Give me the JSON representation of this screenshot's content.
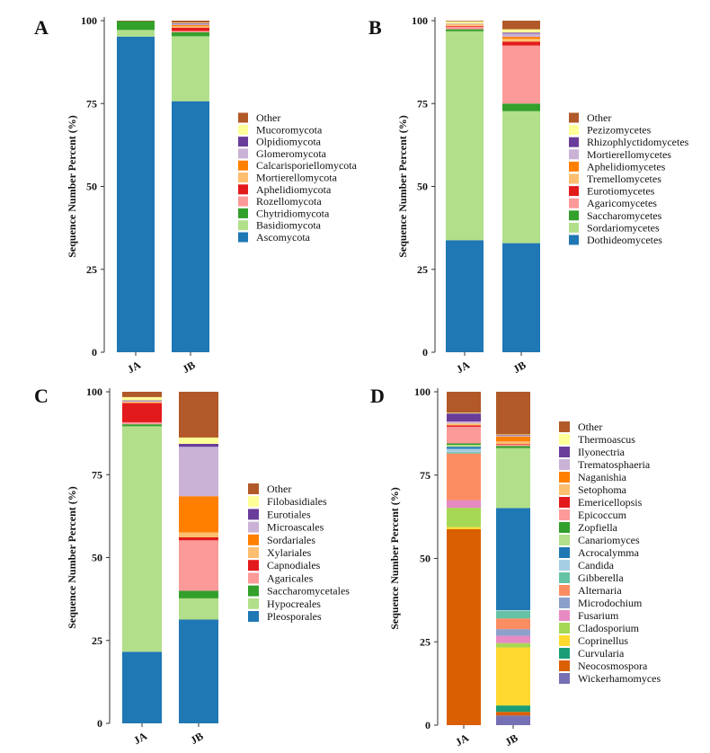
{
  "chart_data": [
    {
      "type": "stacked-bar",
      "panel": "A",
      "ylabel": "Sequence Number Percent (%)",
      "ylim": [
        0,
        100
      ],
      "yticks": [
        0,
        25,
        50,
        75,
        100
      ],
      "categories": [
        "JA",
        "JB"
      ],
      "legend_position": "right",
      "series": [
        {
          "name": "Ascomycota",
          "color": "#1f77b4",
          "values": [
            95.2,
            75.7
          ]
        },
        {
          "name": "Basidiomycota",
          "color": "#b2df8a",
          "values": [
            2.0,
            19.6
          ]
        },
        {
          "name": "Chytridiomycota",
          "color": "#33a02c",
          "values": [
            2.7,
            1.2
          ]
        },
        {
          "name": "Rozellomycota",
          "color": "#fb9a99",
          "values": [
            0,
            0.4
          ]
        },
        {
          "name": "Aphelidiomycota",
          "color": "#e31a1c",
          "values": [
            0,
            1.0
          ]
        },
        {
          "name": "Mortierellomycota",
          "color": "#fdbf6f",
          "values": [
            0,
            0.4
          ]
        },
        {
          "name": "Calcarisporiellomycota",
          "color": "#ff7f00",
          "values": [
            0,
            0.4
          ]
        },
        {
          "name": "Glomeromycota",
          "color": "#cab2d6",
          "values": [
            0,
            0.3
          ]
        },
        {
          "name": "Olpidiomycota",
          "color": "#6a3d9a",
          "values": [
            0,
            0.2
          ]
        },
        {
          "name": "Mucoromycota",
          "color": "#ffff99",
          "values": [
            0,
            0.2
          ]
        },
        {
          "name": "Other",
          "color": "#b15928",
          "values": [
            0.1,
            0.6
          ]
        }
      ]
    },
    {
      "type": "stacked-bar",
      "panel": "B",
      "ylabel": "Sequence Number Percent (%)",
      "ylim": [
        0,
        100
      ],
      "yticks": [
        0,
        25,
        50,
        75,
        100
      ],
      "categories": [
        "JA",
        "JB"
      ],
      "legend_position": "right",
      "series": [
        {
          "name": "Dothideomycetes",
          "color": "#1f77b4",
          "values": [
            33.8,
            32.9
          ]
        },
        {
          "name": "Sordariomycetes",
          "color": "#b2df8a",
          "values": [
            63.0,
            39.8
          ]
        },
        {
          "name": "Saccharomycetes",
          "color": "#33a02c",
          "values": [
            0.6,
            2.3
          ]
        },
        {
          "name": "Agaricomycetes",
          "color": "#fb9a99",
          "values": [
            0.8,
            17.5
          ]
        },
        {
          "name": "Eurotiomycetes",
          "color": "#e31a1c",
          "values": [
            0.2,
            1.2
          ]
        },
        {
          "name": "Tremellomycetes",
          "color": "#fdbf6f",
          "values": [
            0.6,
            0.8
          ]
        },
        {
          "name": "Aphelidiomycetes",
          "color": "#ff7f00",
          "values": [
            0,
            0.6
          ]
        },
        {
          "name": "Mortierellomycetes",
          "color": "#cab2d6",
          "values": [
            0.2,
            1.0
          ]
        },
        {
          "name": "Rhizophlyctidomycetes",
          "color": "#6a3d9a",
          "values": [
            0,
            0.3
          ]
        },
        {
          "name": "Pezizomycetes",
          "color": "#ffff99",
          "values": [
            0.6,
            1.0
          ]
        },
        {
          "name": "Other",
          "color": "#b15928",
          "values": [
            0.2,
            2.6
          ]
        }
      ]
    },
    {
      "type": "stacked-bar",
      "panel": "C",
      "ylabel": "Sequence Number Percent (%)",
      "ylim": [
        0,
        100
      ],
      "yticks": [
        0,
        25,
        50,
        75,
        100
      ],
      "categories": [
        "JA",
        "JB"
      ],
      "legend_position": "right",
      "series": [
        {
          "name": "Pleosporales",
          "color": "#1f77b4",
          "values": [
            21.6,
            31.3
          ]
        },
        {
          "name": "Hypocreales",
          "color": "#b2df8a",
          "values": [
            68.0,
            6.4
          ]
        },
        {
          "name": "Saccharomycetales",
          "color": "#33a02c",
          "values": [
            0.6,
            2.3
          ]
        },
        {
          "name": "Agaricales",
          "color": "#fb9a99",
          "values": [
            0.6,
            15.2
          ]
        },
        {
          "name": "Capnodiales",
          "color": "#e31a1c",
          "values": [
            5.8,
            0.9
          ]
        },
        {
          "name": "Xylariales",
          "color": "#fdbf6f",
          "values": [
            0.4,
            1.5
          ]
        },
        {
          "name": "Sordariales",
          "color": "#ff7f00",
          "values": [
            0,
            10.9
          ]
        },
        {
          "name": "Microascales",
          "color": "#cab2d6",
          "values": [
            0.2,
            14.9
          ]
        },
        {
          "name": "Eurotiales",
          "color": "#6a3d9a",
          "values": [
            0.2,
            0.9
          ]
        },
        {
          "name": "Filobasidiales",
          "color": "#ffff99",
          "values": [
            1.0,
            1.9
          ]
        },
        {
          "name": "Other",
          "color": "#b15928",
          "values": [
            1.6,
            13.8
          ]
        }
      ]
    },
    {
      "type": "stacked-bar",
      "panel": "D",
      "ylabel": "Sequence Number Percent (%)",
      "ylim": [
        0,
        100
      ],
      "yticks": [
        0,
        25,
        50,
        75,
        100
      ],
      "categories": [
        "JA",
        "JB"
      ],
      "legend_position": "right",
      "series": [
        {
          "name": "Wickerhamomyces",
          "color": "#7570b3",
          "values": [
            0,
            2.9
          ]
        },
        {
          "name": "Neocosmospora",
          "color": "#d95f02",
          "values": [
            58.8,
            1.1
          ]
        },
        {
          "name": "Curvularia",
          "color": "#1b9e77",
          "values": [
            0,
            1.9
          ]
        },
        {
          "name": "Coprinellus",
          "color": "#ffd92f",
          "values": [
            0.6,
            17.4
          ]
        },
        {
          "name": "Cladosporium",
          "color": "#a6d854",
          "values": [
            5.8,
            1.3
          ]
        },
        {
          "name": "Fusarium",
          "color": "#e78ac3",
          "values": [
            2.3,
            2.2
          ]
        },
        {
          "name": "Microdochium",
          "color": "#8da0cb",
          "values": [
            0,
            2.0
          ]
        },
        {
          "name": "Alternaria",
          "color": "#fc8d62",
          "values": [
            14.0,
            3.2
          ]
        },
        {
          "name": "Gibberella",
          "color": "#66c2a5",
          "values": [
            0.4,
            2.3
          ]
        },
        {
          "name": "Candida",
          "color": "#a6cee3",
          "values": [
            1.0,
            0.2
          ]
        },
        {
          "name": "Acrocalymma",
          "color": "#1f78b4",
          "values": [
            0.6,
            30.6
          ]
        },
        {
          "name": "Canariomyces",
          "color": "#b2df8a",
          "values": [
            0.6,
            18.0
          ]
        },
        {
          "name": "Zopfiella",
          "color": "#33a02c",
          "values": [
            0.4,
            0.6
          ]
        },
        {
          "name": "Epicoccum",
          "color": "#fb9a99",
          "values": [
            5.0,
            0.4
          ]
        },
        {
          "name": "Emericellopsis",
          "color": "#e31a1c",
          "values": [
            0.4,
            0.2
          ]
        },
        {
          "name": "Setophoma",
          "color": "#fdbf6f",
          "values": [
            0.6,
            0.8
          ]
        },
        {
          "name": "Naganishia",
          "color": "#ff7f00",
          "values": [
            0,
            1.5
          ]
        },
        {
          "name": "Trematosphaeria",
          "color": "#cab2d6",
          "values": [
            0.6,
            0.2
          ]
        },
        {
          "name": "Ilyonectria",
          "color": "#6a3d9a",
          "values": [
            2.4,
            0.2
          ]
        },
        {
          "name": "Thermoascus",
          "color": "#ffff99",
          "values": [
            0.2,
            0.2
          ]
        },
        {
          "name": "Other",
          "color": "#b15928",
          "values": [
            6.3,
            12.8
          ]
        }
      ]
    }
  ]
}
